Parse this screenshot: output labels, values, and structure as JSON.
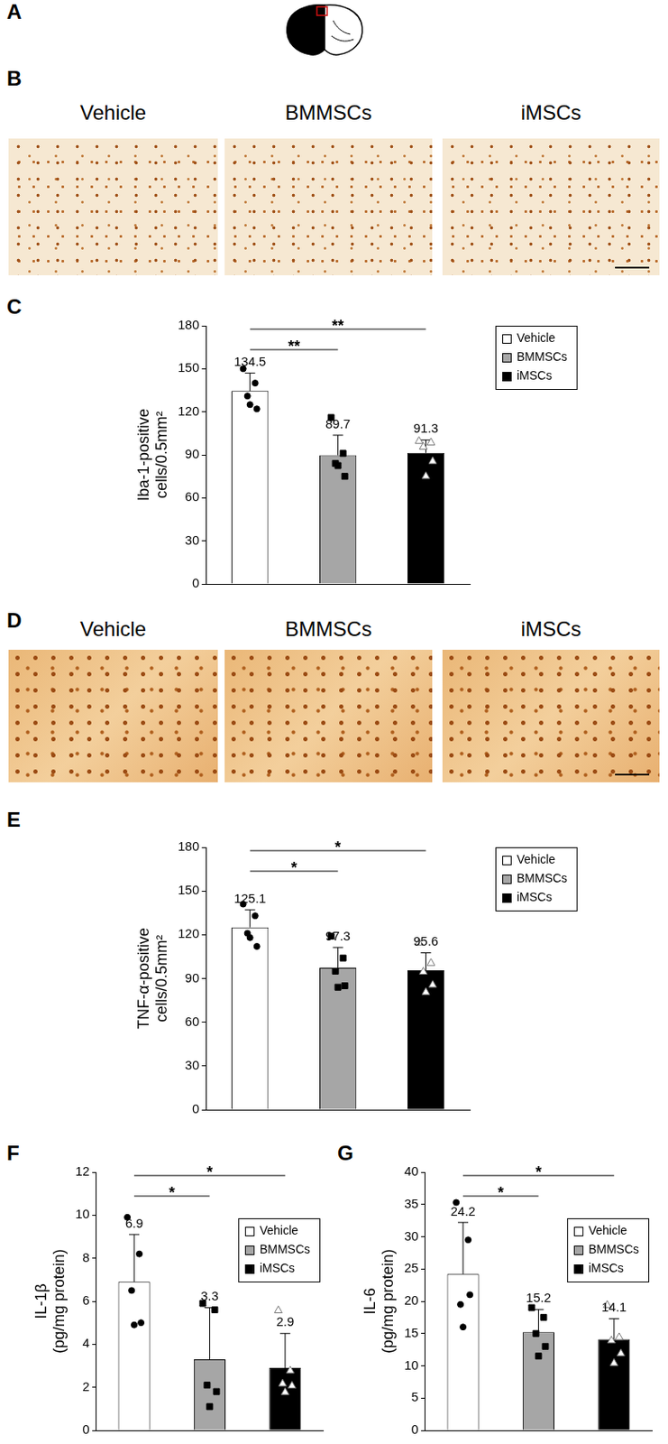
{
  "panels": [
    "A",
    "B",
    "C",
    "D",
    "E",
    "F",
    "G"
  ],
  "micrographs": [
    {
      "captions": [
        "Vehicle",
        "BMMSCs",
        "iMSCs"
      ]
    },
    {
      "captions": [
        "Vehicle",
        "BMMSCs",
        "iMSCs"
      ]
    }
  ],
  "chart_data": [
    {
      "type": "bar",
      "categories": [
        null
      ],
      "y_label": [
        "Iba-1-positive",
        "cells/0.5mm²"
      ],
      "ylim": [
        0,
        180
      ],
      "yticks": [
        0,
        30,
        60,
        90,
        120,
        150,
        180
      ],
      "grid": false,
      "tick_labels": "y",
      "legend": "right",
      "data_labels": true,
      "series": [
        {
          "name": "Vehicle",
          "color": "#ffffff",
          "values": [
            134.5
          ],
          "errors": [
            12.5
          ],
          "points": [
            [
              150,
              140,
              131,
              122,
              125
            ]
          ],
          "marker": "circle"
        },
        {
          "name": "BMMSCs",
          "color": "#a6a6a6",
          "values": [
            89.7
          ],
          "errors": [
            14
          ],
          "points": [
            [
              116,
              91,
              84,
              75,
              82.5
            ]
          ],
          "marker": "square"
        },
        {
          "name": "iMSCs",
          "color": "#000000",
          "values": [
            91.3
          ],
          "errors": [
            9
          ],
          "points": [
            [
              100,
              99,
              96,
              86,
              75.5
            ]
          ],
          "marker": "triangle"
        }
      ],
      "significance": [
        {
          "from": "Vehicle",
          "to": "BMMSCs",
          "label": "**"
        },
        {
          "from": "Vehicle",
          "to": "iMSCs",
          "label": "**"
        }
      ]
    },
    {
      "type": "bar",
      "categories": [
        null
      ],
      "y_label": [
        "TNF-α-positive",
        "cells/0.5mm²"
      ],
      "ylim": [
        0,
        180
      ],
      "yticks": [
        0,
        30,
        60,
        90,
        120,
        150,
        180
      ],
      "grid": false,
      "tick_labels": "y",
      "legend": "right",
      "data_labels": true,
      "series": [
        {
          "name": "Vehicle",
          "color": "#ffffff",
          "values": [
            125.1
          ],
          "errors": [
            12
          ],
          "points": [
            [
              141,
              133,
              121,
              112,
              118
            ]
          ],
          "marker": "circle"
        },
        {
          "name": "BMMSCs",
          "color": "#a6a6a6",
          "values": [
            97.3
          ],
          "errors": [
            14
          ],
          "points": [
            [
              119,
              104,
              95,
              85,
              84
            ]
          ],
          "marker": "square"
        },
        {
          "name": "iMSCs",
          "color": "#000000",
          "values": [
            95.6
          ],
          "errors": [
            12
          ],
          "points": [
            [
              115,
              101,
              95,
              86,
              81
            ]
          ],
          "marker": "triangle"
        }
      ],
      "significance": [
        {
          "from": "Vehicle",
          "to": "BMMSCs",
          "label": "*"
        },
        {
          "from": "Vehicle",
          "to": "iMSCs",
          "label": "*"
        }
      ]
    },
    {
      "type": "bar",
      "categories": [
        null
      ],
      "y_label": [
        "IL-1β",
        "(pg/mg protein)"
      ],
      "ylim": [
        0,
        12
      ],
      "yticks": [
        0,
        2,
        4,
        6,
        8,
        10,
        12
      ],
      "grid": false,
      "tick_labels": "y",
      "legend": "upper right",
      "data_labels": true,
      "series": [
        {
          "name": "Vehicle",
          "color": "#ffffff",
          "values": [
            6.9
          ],
          "errors": [
            2.2
          ],
          "points": [
            [
              9.9,
              8.2,
              6.5,
              5.0,
              4.9
            ]
          ],
          "marker": "circle"
        },
        {
          "name": "BMMSCs",
          "color": "#a6a6a6",
          "values": [
            3.3
          ],
          "errors": [
            2.4
          ],
          "points": [
            [
              5.9,
              5.6,
              2.1,
              1.8,
              1.1
            ]
          ],
          "marker": "square"
        },
        {
          "name": "iMSCs",
          "color": "#000000",
          "values": [
            2.9
          ],
          "errors": [
            1.6
          ],
          "points": [
            [
              5.6,
              2.8,
              2.2,
              2.1,
              1.8
            ]
          ],
          "marker": "triangle"
        }
      ],
      "significance": [
        {
          "from": "Vehicle",
          "to": "BMMSCs",
          "label": "*"
        },
        {
          "from": "Vehicle",
          "to": "iMSCs",
          "label": "*"
        }
      ]
    },
    {
      "type": "bar",
      "categories": [
        null
      ],
      "y_label": [
        "IL-6",
        "(pg/mg protein)"
      ],
      "ylim": [
        0,
        40
      ],
      "yticks": [
        0,
        5,
        10,
        15,
        20,
        25,
        30,
        35,
        40
      ],
      "grid": false,
      "tick_labels": "y",
      "legend": "upper right",
      "data_labels": true,
      "series": [
        {
          "name": "Vehicle",
          "color": "#ffffff",
          "values": [
            24.2
          ],
          "errors": [
            8
          ],
          "points": [
            [
              35.3,
              29.5,
              19.5,
              21,
              16
            ]
          ],
          "marker": "circle"
        },
        {
          "name": "BMMSCs",
          "color": "#a6a6a6",
          "values": [
            15.2
          ],
          "errors": [
            3.5
          ],
          "points": [
            [
              19,
              17.5,
              15,
              13,
              11.5
            ]
          ],
          "marker": "square"
        },
        {
          "name": "iMSCs",
          "color": "#000000",
          "values": [
            14.1
          ],
          "errors": [
            3.2
          ],
          "points": [
            [
              19.5,
              14.5,
              14,
              12,
              10.5
            ]
          ],
          "marker": "triangle"
        }
      ],
      "significance": [
        {
          "from": "Vehicle",
          "to": "BMMSCs",
          "label": "*"
        },
        {
          "from": "Vehicle",
          "to": "iMSCs",
          "label": "*"
        }
      ]
    }
  ]
}
